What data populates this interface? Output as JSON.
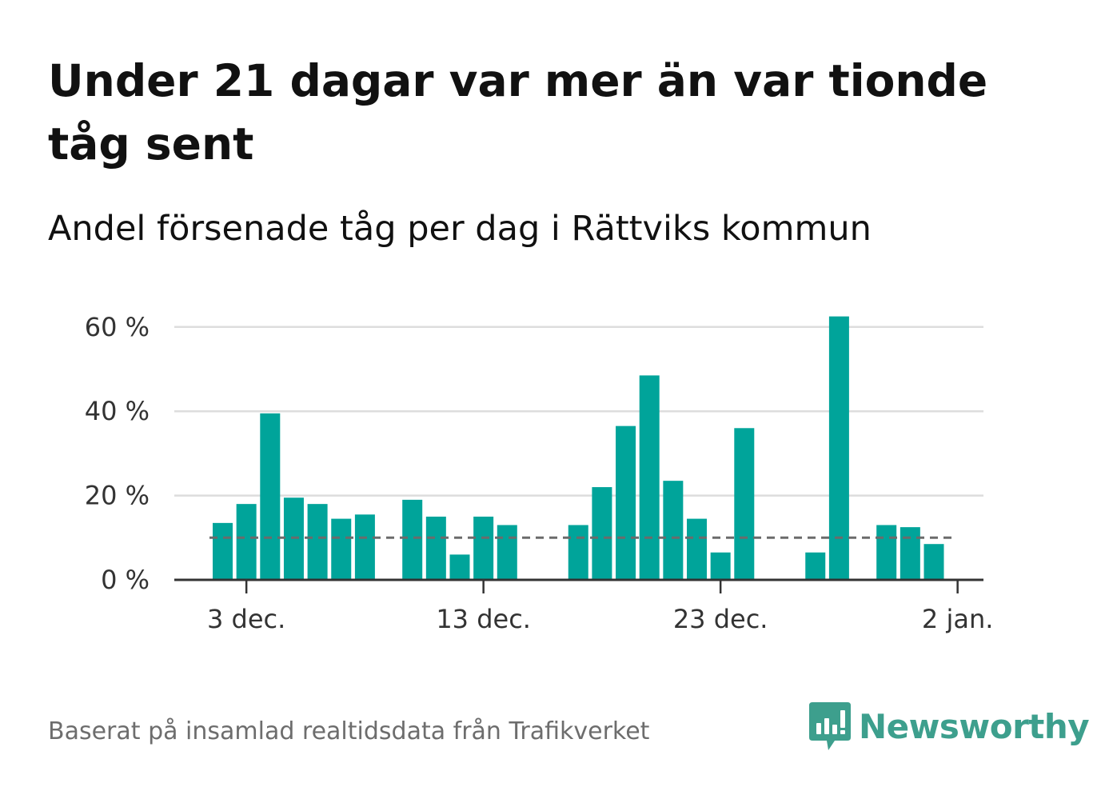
{
  "title": "Under 21 dagar var mer än var tionde tåg sent",
  "subtitle": "Andel försenade tåg per dag i Rättviks kommun",
  "footer": "Baserat på insamlad realtidsdata från Trafikverket",
  "logo_text": "Newsworthy",
  "colors": {
    "bar": "#00a49a",
    "reference_line": "#6b6b6b",
    "grid": "#dddddd",
    "axis": "#333333",
    "logo": "#3d9f8d"
  },
  "chart_data": {
    "type": "bar",
    "title": "Andel försenade tåg per dag i Rättviks kommun",
    "xlabel": "",
    "ylabel": "",
    "x_tick_labels": [
      "3 dec.",
      "13 dec.",
      "23 dec.",
      "2 jan."
    ],
    "y_tick_labels": [
      "0 %",
      "20 %",
      "40 %",
      "60 %"
    ],
    "y_ticks": [
      0,
      20,
      40,
      60
    ],
    "ylim": [
      0,
      65
    ],
    "grid": true,
    "reference_line": 10,
    "categories": [
      "2 dec.",
      "3 dec.",
      "4 dec.",
      "5 dec.",
      "6 dec.",
      "7 dec.",
      "8 dec.",
      "9 dec.",
      "10 dec.",
      "11 dec.",
      "12 dec.",
      "13 dec.",
      "14 dec.",
      "15 dec.",
      "16 dec.",
      "17 dec.",
      "18 dec.",
      "19 dec.",
      "20 dec.",
      "21 dec.",
      "22 dec.",
      "23 dec.",
      "24 dec.",
      "25 dec.",
      "26 dec.",
      "27 dec.",
      "28 dec.",
      "29 dec.",
      "30 dec.",
      "31 dec.",
      "1 jan."
    ],
    "values": [
      13.5,
      18,
      39.5,
      19.5,
      18,
      14.5,
      15.5,
      null,
      19,
      15,
      6,
      15,
      13,
      null,
      null,
      13,
      22,
      36.5,
      48.5,
      23.5,
      14.5,
      6.5,
      36,
      null,
      null,
      6.5,
      62.5,
      null,
      13,
      12.5,
      8.5
    ]
  }
}
